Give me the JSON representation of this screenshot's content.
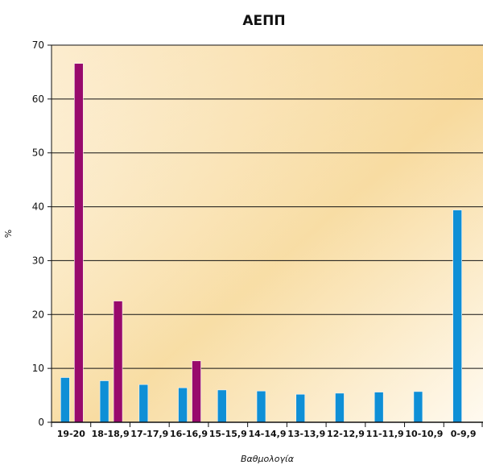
{
  "chart_data": {
    "type": "bar",
    "title": "ΑΕΠΠ",
    "xlabel": "Βαθμολογία",
    "ylabel": "%",
    "ylim": [
      0,
      70
    ],
    "yticks": [
      0,
      10,
      20,
      30,
      40,
      50,
      60,
      70
    ],
    "grid": "horizontal",
    "categories": [
      "19-20",
      "18-18,9",
      "17-17,9",
      "16-16,9",
      "15-15,9",
      "14-14,9",
      "13-13,9",
      "12-12,9",
      "11-11,9",
      "10-10,9",
      "0-9,9"
    ],
    "series": [
      {
        "color": "#0f8fd6",
        "values": [
          8.3,
          7.7,
          7.0,
          6.4,
          6.0,
          5.8,
          5.2,
          5.4,
          5.6,
          5.7,
          39.4
        ]
      },
      {
        "color": "#980a6c",
        "values": [
          66.6,
          22.5,
          0,
          11.4,
          0,
          0,
          0,
          0,
          0,
          0,
          0
        ]
      }
    ],
    "colors": {
      "background_top": "#f8dca1",
      "background_bottom": "#fffaf0"
    }
  }
}
